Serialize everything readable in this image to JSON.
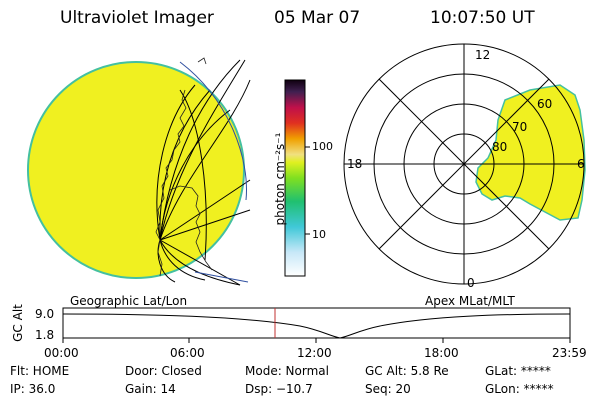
{
  "header": {
    "title": "Ultraviolet Imager",
    "date": "05 Mar 07",
    "time": "10:07:50 UT"
  },
  "colors": {
    "fill": "#f0f020",
    "edge": "#44c0a0",
    "axis": "#000000",
    "marker": "#c03030"
  },
  "colorbar": {
    "label": "photon cm⁻²s⁻¹",
    "ticks": [
      "100",
      "10"
    ]
  },
  "left_panel": {
    "label": "Geographic Lat/Lon"
  },
  "right_panel": {
    "label": "Apex MLat/MLT",
    "clock_labels": {
      "top": "12",
      "left": "18",
      "right": "6",
      "bottom": "0"
    },
    "lat_labels": [
      "60",
      "70",
      "80"
    ]
  },
  "altitude_plot": {
    "ylabel": "GC Alt",
    "y_ticks": [
      "9.0",
      "1.8"
    ],
    "x_ticks": [
      "00:00",
      "06:00",
      "12:00",
      "18:00",
      "23:59"
    ],
    "marker_time": "10:07"
  },
  "footer": {
    "flt": "Flt: HOME",
    "door": "Door: Closed",
    "mode": "Mode: Normal",
    "gcalt": "GC Alt: 5.8 Re",
    "glat": "GLat: *****",
    "ip": "IP: 36.0",
    "gain": "Gain: 14",
    "dsp": "Dsp: −10.7",
    "seq": "Seq: 20",
    "glon": "GLon: *****"
  }
}
